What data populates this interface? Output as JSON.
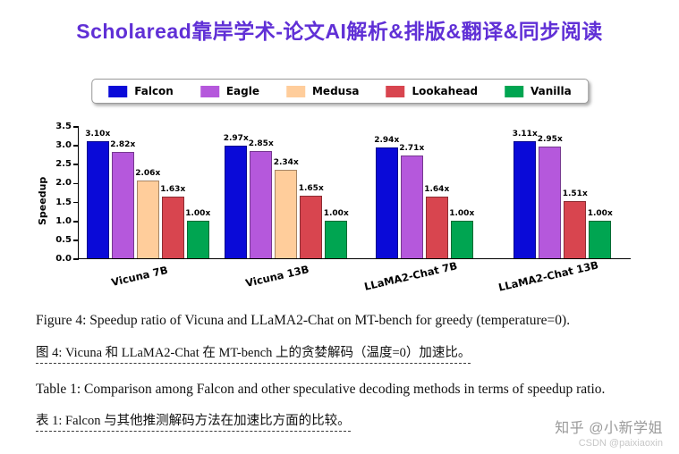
{
  "title": "Scholaread靠岸学术-论文AI解析&排版&翻译&同步阅读",
  "captions": {
    "figure_en": "Figure 4: Speedup ratio of Vicuna and LLaMA2-Chat on MT-bench for greedy (temperature=0).",
    "figure_zh": "图 4:  Vicuna 和 LLaMA2-Chat 在 MT-bench 上的贪婪解码（温度=0）加速比。",
    "table_en": "Table 1: Comparison among Falcon and other speculative decoding methods in terms of speedup ratio.",
    "table_zh": "表 1:  Falcon 与其他推测解码方法在加速比方面的比较。"
  },
  "watermark": {
    "zhihu": "知乎 @小新学姐",
    "csdn": "CSDN @paixiaoxin"
  },
  "chart_data": {
    "type": "bar",
    "title": "",
    "xlabel": "",
    "ylabel": "Speedup",
    "ylim": [
      0,
      3.5
    ],
    "yticks": [
      0.0,
      0.5,
      1.0,
      1.5,
      2.0,
      2.5,
      3.0,
      3.5
    ],
    "grid": false,
    "legend_position": "top",
    "value_label_suffix": "x",
    "categories": [
      "Vicuna 7B",
      "Vicuna 13B",
      "LLaMA2-Chat 7B",
      "LLaMA2-Chat 13B"
    ],
    "series": [
      {
        "name": "Falcon",
        "color": "#0a0ad8",
        "values": [
          3.1,
          2.97,
          2.94,
          3.11
        ]
      },
      {
        "name": "Eagle",
        "color": "#b558dc",
        "values": [
          2.82,
          2.85,
          2.71,
          2.95
        ]
      },
      {
        "name": "Medusa",
        "color": "#ffcd9b",
        "values": [
          2.06,
          2.34,
          null,
          null
        ]
      },
      {
        "name": "Lookahead",
        "color": "#d8454f",
        "values": [
          1.63,
          1.65,
          1.64,
          1.51
        ]
      },
      {
        "name": "Vanilla",
        "color": "#00a551",
        "values": [
          1.0,
          1.0,
          1.0,
          1.0
        ]
      }
    ]
  }
}
